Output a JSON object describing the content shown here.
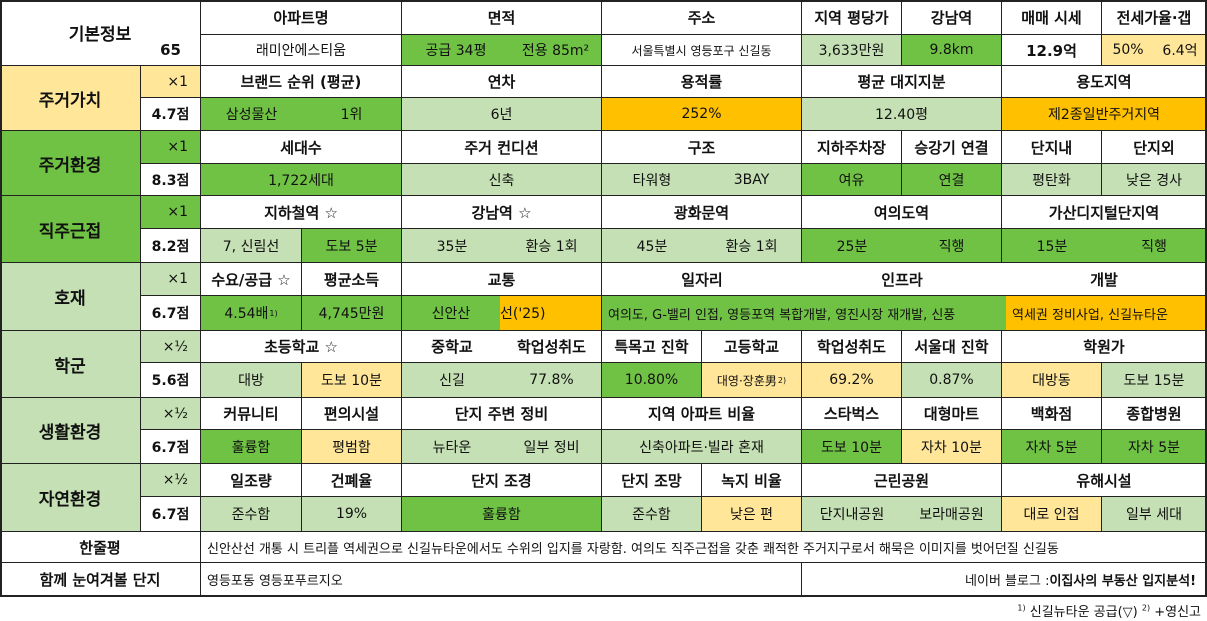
{
  "basic": {
    "label": "기본정보",
    "number": "65",
    "headers": [
      "아파트명",
      "면적",
      "주소",
      "지역 평당가",
      "강남역",
      "매매 시세",
      "전세가율·갭"
    ],
    "apt_name": "래미안에스티움",
    "area_supply": "공급 34평",
    "area_exclusive": "전용 85m²",
    "address": "서울특별시 영등포구 신길동",
    "price_per_pyeong": "3,633만원",
    "gangnam_distance": "9.8km",
    "sale_price": "12.9억",
    "jeonse_rate": "50%",
    "gap": "6.4억"
  },
  "sections": [
    {
      "label": "주거가치",
      "weight": "×1",
      "score": "4.7점"
    },
    {
      "label": "주거환경",
      "weight": "×1",
      "score": "8.3점"
    },
    {
      "label": "직주근접",
      "weight": "×1",
      "score": "8.2점"
    },
    {
      "label": "호재",
      "weight": "×1",
      "score": "6.7점"
    },
    {
      "label": "학군",
      "weight": "×½",
      "score": "5.6점"
    },
    {
      "label": "생활환경",
      "weight": "×½",
      "score": "6.7점"
    },
    {
      "label": "자연환경",
      "weight": "×½",
      "score": "6.7점"
    }
  ],
  "value": {
    "headers": [
      "브랜드 순위 (평균)",
      "연차",
      "용적률",
      "평균 대지지분",
      "용도지역"
    ],
    "brand": "삼성물산",
    "brand_rank": "1위",
    "age": "6년",
    "far": "252%",
    "land_share": "12.40평",
    "zone": "제2종일반주거지역"
  },
  "environment": {
    "headers": [
      "세대수",
      "주거 컨디션",
      "구조",
      "지하주차장",
      "승강기 연결",
      "단지내",
      "단지외"
    ],
    "households": "1,722세대",
    "condition": "신축",
    "structure": "타워형",
    "bay": "3BAY",
    "parking": "여유",
    "elevator": "연결",
    "inside": "평탄화",
    "outside": "낮은 경사"
  },
  "commute": {
    "headers": [
      "지하철역 ☆",
      "강남역 ☆",
      "광화문역",
      "여의도역",
      "가산디지털단지역"
    ],
    "station": "7, 신림선",
    "station_walk": "도보 5분",
    "gangnam_time": "35분",
    "gangnam_transfer": "환승 1회",
    "gwanghwamun_time": "45분",
    "gwanghwamun_transfer": "환승 1회",
    "yeouido_time": "25분",
    "yeouido_transfer": "직행",
    "gasan_time": "15분",
    "gasan_transfer": "직행"
  },
  "development": {
    "headers": [
      "수요/공급 ☆",
      "평균소득",
      "교통",
      "일자리",
      "인프라",
      "개발"
    ],
    "supply": "4.54배",
    "supply_note": "1)",
    "income": "4,745만원",
    "transport_a": "신안산",
    "transport_b": "선('25)",
    "jobs_infra": "여의도, G-밸리 인접, 영등포역 복합개발, 영진시장 재개발, 신풍",
    "development": "역세권 정비사업, 신길뉴타운"
  },
  "school": {
    "headers": [
      "초등학교 ☆",
      "중학교",
      "학업성취도",
      "특목고 진학",
      "고등학교",
      "학업성취도",
      "서울대 진학",
      "학원가"
    ],
    "elementary": "대방",
    "elementary_walk": "도보 10분",
    "middle": "신길",
    "middle_score": "77.8%",
    "special_high": "10.80%",
    "high": "대영·장훈男",
    "high_note": "2)",
    "high_score": "69.2%",
    "snu": "0.87%",
    "academy": "대방동",
    "academy_walk": "도보 15분"
  },
  "living": {
    "headers": [
      "커뮤니티",
      "편의시설",
      "단지 주변 정비",
      "지역 아파트 비율",
      "스타벅스",
      "대형마트",
      "백화점",
      "종합병원"
    ],
    "community": "훌륭함",
    "convenience": "평범함",
    "surround_a": "뉴타운",
    "surround_b": "일부 정비",
    "apt_ratio": "신축아파트·빌라 혼재",
    "starbucks": "도보 10분",
    "mart": "자차 10분",
    "department": "자차 5분",
    "hospital": "자차 5분"
  },
  "nature": {
    "headers": [
      "일조량",
      "건폐율",
      "단지 조경",
      "단지 조망",
      "녹지 비율",
      "근린공원",
      "유해시설"
    ],
    "sunlight": "준수함",
    "bcr": "19%",
    "landscape": "훌륭함",
    "view": "준수함",
    "green": "낮은 편",
    "park_a": "단지내공원",
    "park_b": "보라매공원",
    "hazard_a": "대로 인접",
    "hazard_b": "일부 세대"
  },
  "summary": {
    "label": "한줄평",
    "text": "신안산선 개통 시 트리플 역세권으로 신길뉴타운에서도 수위의 입지를 자랑함. 여의도 직주근접을 갖춘 쾌적한 주거지구로서 해묵은 이미지를 벗어던질 신길동"
  },
  "related": {
    "label": "함께 눈여겨볼 단지",
    "value": "영등포동 영등포푸르지오",
    "blog_prefix": "네이버 블로그 : ",
    "blog_name": "이집사의 부동산 입지분석!"
  },
  "footnote": {
    "n1": "1)",
    "t1": " 신길뉴타운 공급(▽) ",
    "n2": "2)",
    "t2": " +영신고"
  },
  "colors": {
    "yellow": "#ffe699",
    "gold": "#ffc000",
    "green": "#70c244",
    "light_green": "#c5e0b4",
    "mid_green": "#a9d18e",
    "white": "#ffffff",
    "section_yellow": "#ffe699"
  }
}
